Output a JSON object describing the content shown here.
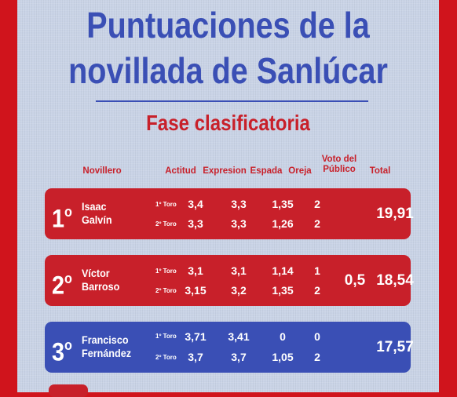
{
  "title_line1": "Puntuaciones de la",
  "title_line2": "novillada de Sanlúcar",
  "subtitle": "Fase clasificatoria",
  "headers": {
    "novillero": "Novillero",
    "actitud": "Actitud",
    "expresion": "Expresion",
    "espada": "Espada",
    "oreja": "Oreja",
    "voto_line1": "Voto del",
    "voto_line2": "Público",
    "total": "Total"
  },
  "ranking": [
    {
      "rank": "1",
      "suffix": "o",
      "name_line1": "Isaac",
      "name_line2": "Galvín",
      "color": "#c8202a",
      "toros": [
        {
          "label": "1º Toro",
          "actitud": "3,4",
          "expresion": "3,3",
          "espada": "1,35",
          "oreja": "2"
        },
        {
          "label": "2º Toro",
          "actitud": "3,3",
          "expresion": "3,3",
          "espada": "1,26",
          "oreja": "2"
        }
      ],
      "voto": "",
      "total": "19,91"
    },
    {
      "rank": "2",
      "suffix": "o",
      "name_line1": "Víctor",
      "name_line2": "Barroso",
      "color": "#c8202a",
      "toros": [
        {
          "label": "1º Toro",
          "actitud": "3,1",
          "expresion": "3,1",
          "espada": "1,14",
          "oreja": "1"
        },
        {
          "label": "2º Toro",
          "actitud": "3,15",
          "expresion": "3,2",
          "espada": "1,35",
          "oreja": "2"
        }
      ],
      "voto": "0,5",
      "total": "18,54"
    },
    {
      "rank": "3",
      "suffix": "o",
      "name_line1": "Francisco",
      "name_line2": "Fernández",
      "color": "#3a4fb5",
      "toros": [
        {
          "label": "1º Toro",
          "actitud": "3,71",
          "expresion": "3,41",
          "espada": "0",
          "oreja": "0"
        },
        {
          "label": "2º Toro",
          "actitud": "3,7",
          "expresion": "3,7",
          "espada": "1,05",
          "oreja": "2"
        }
      ],
      "voto": "",
      "total": "17,57"
    }
  ]
}
